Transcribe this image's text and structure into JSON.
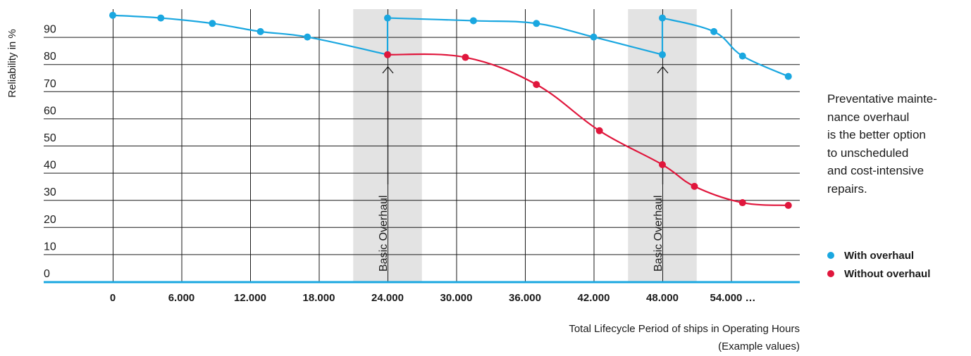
{
  "chart_data": {
    "type": "line",
    "ylabel": "Reliability in %",
    "xlabel": "Total Lifecycle Period of ships in Operating Hours",
    "xlabel_note": "(Example values)",
    "y_ticks": [
      "0",
      "10",
      "20",
      "30",
      "40",
      "50",
      "60",
      "70",
      "80",
      "90"
    ],
    "x_ticks": [
      "0",
      "6.000",
      "12.000",
      "18.000",
      "24.000",
      "30.000",
      "36.000",
      "42.000",
      "48.000",
      "54.000 …"
    ],
    "xlim": [
      0,
      59000
    ],
    "ylim": [
      0,
      100
    ],
    "grid": true,
    "overhauls": [
      {
        "label": "Basic Overhaul",
        "x_start": 21000,
        "x_end": 27000,
        "x": 24000
      },
      {
        "label": "Basic Overhaul",
        "x_start": 45000,
        "x_end": 51000,
        "x": 48000
      }
    ],
    "series": [
      {
        "name": "With overhaul",
        "color": "#1aa7e0",
        "segments": [
          [
            [
              0,
              98
            ],
            [
              4200,
              97
            ],
            [
              8700,
              95
            ],
            [
              12900,
              92
            ],
            [
              17000,
              90
            ],
            [
              24000,
              83.5
            ]
          ],
          [
            [
              24000,
              97
            ],
            [
              31500,
              96
            ],
            [
              37000,
              95
            ],
            [
              42000,
              90
            ],
            [
              48000,
              83.5
            ]
          ],
          [
            [
              48000,
              97
            ],
            [
              52500,
              92
            ],
            [
              55000,
              83
            ],
            [
              59000,
              75.5
            ]
          ]
        ]
      },
      {
        "name": "Without overhaul",
        "color": "#e0163c",
        "segments": [
          [
            [
              24000,
              83.5
            ],
            [
              30800,
              82.5
            ],
            [
              37000,
              72.5
            ],
            [
              42500,
              55.5
            ],
            [
              48000,
              43
            ],
            [
              50800,
              35
            ],
            [
              55000,
              29
            ],
            [
              59000,
              28
            ]
          ]
        ]
      }
    ]
  },
  "note_lines": [
    "Preventative mainte-",
    "nance overhaul",
    "is the better option",
    "to unscheduled",
    "and cost-intensive",
    "repairs."
  ],
  "legend": [
    {
      "label": "With overhaul",
      "color": "#1aa7e0"
    },
    {
      "label": "Without overhaul",
      "color": "#e0163c"
    }
  ]
}
